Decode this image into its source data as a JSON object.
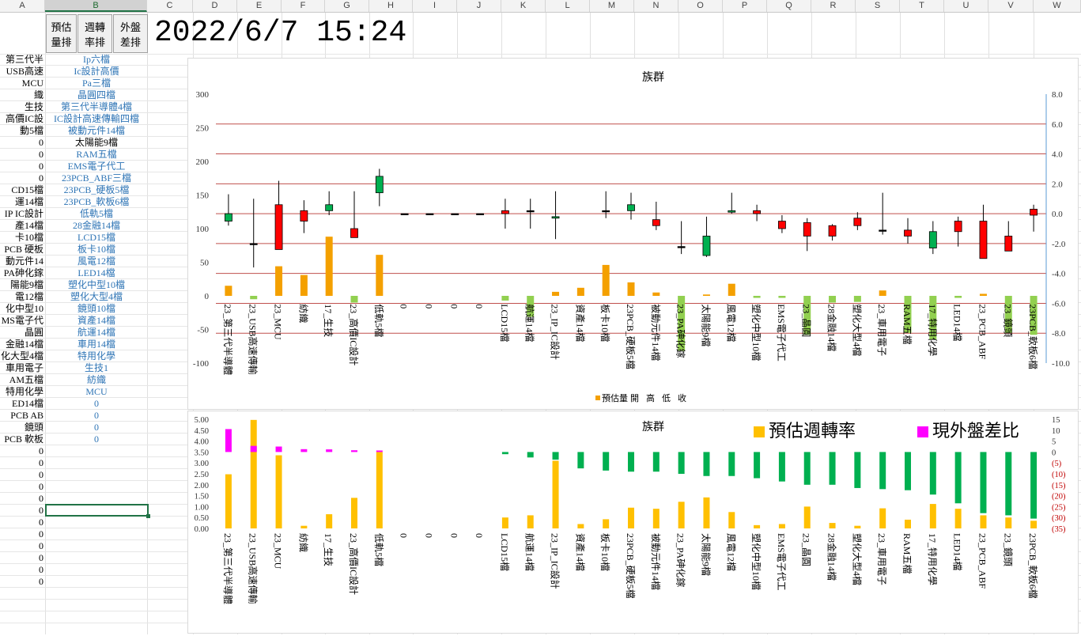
{
  "columns": [
    "A",
    "B",
    "C",
    "D",
    "E",
    "F",
    "G",
    "H",
    "I",
    "J",
    "K",
    "L",
    "M",
    "N",
    "O",
    "P",
    "Q",
    "R",
    "S",
    "T",
    "U",
    "V",
    "W"
  ],
  "selected_column": "B",
  "buttons": [
    {
      "line1": "預估",
      "line2": "量排"
    },
    {
      "line1": "週轉",
      "line2": "率排"
    },
    {
      "line1": "外盤",
      "line2": "差排"
    }
  ],
  "datetime": "2022/6/7 15:24",
  "col_a": [
    "第三代半",
    "USB高速",
    "MCU",
    "織",
    "生技",
    "高價IC設",
    "動5檔",
    "0",
    "0",
    "0",
    "0",
    "CD15檔",
    "運14檔",
    "IP IC設計",
    "產14檔",
    "卡10檔",
    "PCB 硬板",
    "動元件14",
    "PA砷化鎵",
    "陽能9檔",
    "電12檔",
    "化中型10",
    "MS電子代",
    "晶圓",
    "金融14檔",
    "化大型4檔",
    "車用電子",
    "AM五檔",
    "特用化學",
    "ED14檔",
    "PCB AB",
    "鏡頭",
    "PCB 軟板",
    "0",
    "0",
    "0",
    "0",
    "0",
    "0",
    "0",
    "0",
    "0",
    "0",
    "0",
    "0"
  ],
  "col_b": [
    "Ip六檔",
    "Ic設計高價",
    "Pa三檔",
    "晶圓四檔",
    "第三代半導體4檔",
    "IC設計高速傳輸四檔",
    "被動元件14檔",
    "太陽能9檔",
    "RAM五檔",
    "EMS電子代工",
    "23PCB_ABF三檔",
    "23PCB_硬板5檔",
    "23PCB_軟板6檔",
    "低軌5檔",
    "28金融14檔",
    "LCD15檔",
    "板卡10檔",
    "風電12檔",
    "LED14檔",
    "塑化中型10檔",
    "塑化大型4檔",
    "鏡頭10檔",
    "資產14檔",
    "航運14檔",
    "車用14檔",
    "特用化學",
    "生技1",
    "紡織",
    "MCU",
    "0",
    "0",
    "0",
    "0"
  ],
  "col_b_black_rows": [
    7
  ],
  "chart1": {
    "title": "族群",
    "legend": [
      "預估量",
      "開",
      "高",
      "低",
      "收"
    ],
    "left_ticks": [
      "300",
      "250",
      "200",
      "150",
      "100",
      "50",
      "0",
      "-50",
      "-100"
    ],
    "right_ticks": [
      "8.0",
      "6.0",
      "4.0",
      "2.0",
      "0.0",
      "-2.0",
      "-4.0",
      "-6.0",
      "-8.0",
      "-10.0"
    ]
  },
  "chart2": {
    "title": "族群",
    "legend": [
      "預估週轉率",
      "現外盤差比"
    ],
    "left_ticks": [
      "5.00",
      "4.50",
      "4.00",
      "3.50",
      "3.00",
      "2.50",
      "2.00",
      "1.50",
      "1.00",
      "0.50",
      "0.00"
    ],
    "right_ticks": [
      "15",
      "10",
      "5",
      "0",
      "(5)",
      "(10)",
      "(15)",
      "(20)",
      "(25)",
      "(30)",
      "(35)"
    ]
  },
  "colors": {
    "red": "#ff0000",
    "green": "#00b050",
    "orange": "#f4a000",
    "yellow": "#ffc000",
    "magenta": "#ff00ff",
    "light_green": "#92d050",
    "grid_red": "#c0504d"
  },
  "chart_data": [
    {
      "type": "candlestick",
      "title": "族群",
      "ylim": [
        -100,
        300
      ],
      "y2lim": [
        -10,
        8
      ],
      "categories": [
        "23_第三代半導體",
        "23_USB高速傳輸",
        "23_MCU",
        "紡織",
        "17_生技",
        "23_高價IC設計",
        "低軌5檔",
        "0",
        "0",
        "0",
        "0",
        "LCD15檔",
        "航運14檔",
        "23_IP_IC設計",
        "資產14檔",
        "板卡10檔",
        "23PCB_硬板5檔",
        "被動元件14檔",
        "23_PA砷化鎵",
        "太陽能9檔",
        "風電12檔",
        "塑化中型10檔",
        "EMS電子代工",
        "23_晶圓",
        "28金融14檔",
        "塑化大型4檔",
        "23_車用電子",
        "RAM五檔",
        "17_特用化學",
        "LED14檔",
        "23_PCB_ABF",
        "23_鏡頭",
        "23PCB_軟板6檔"
      ],
      "series": [
        {
          "name": "預估量",
          "values": [
            15,
            -5,
            44,
            31,
            88,
            -10,
            61,
            0,
            0,
            0,
            0,
            -7,
            -31,
            6,
            12,
            46,
            20,
            5,
            -82,
            2,
            18,
            -3,
            -3,
            -58,
            -10,
            -9,
            8,
            -55,
            -65,
            -3,
            3,
            -55,
            -58
          ]
        },
        {
          "name": "開",
          "values": [
            0.0,
            -2.0,
            -2.4,
            -0.5,
            0.6,
            -1.6,
            2.5,
            0.0,
            0.0,
            0.0,
            0.0,
            0.0,
            0.2,
            -0.2,
            null,
            0.2,
            0.6,
            -0.8,
            -2.2,
            -1.5,
            0.2,
            0.0,
            -1.0,
            -1.5,
            -1.5,
            -0.8,
            -1.1,
            -1.5,
            -1.2,
            -1.2,
            -3.0,
            -2.5,
            -0.1
          ]
        },
        {
          "name": "高",
          "values": [
            1.3,
            1.0,
            2.2,
            0.9,
            1.5,
            1.5,
            3.0,
            0.0,
            0.0,
            0.0,
            0.0,
            1.0,
            1.0,
            1.5,
            null,
            1.5,
            1.4,
            0.8,
            -0.5,
            -0.2,
            1.4,
            0.6,
            -0.1,
            -0.3,
            -0.7,
            0.1,
            1.4,
            -0.3,
            -0.5,
            -0.2,
            0.6,
            -0.5,
            0.6
          ]
        },
        {
          "name": "低",
          "values": [
            -0.8,
            -3.6,
            -1.3,
            -1.3,
            -0.1,
            -1.4,
            0.5,
            0.0,
            0.0,
            0.0,
            0.0,
            -1.0,
            -1.0,
            -1.7,
            null,
            -0.3,
            -0.4,
            -1.1,
            -2.7,
            -2.9,
            0.0,
            -0.5,
            -1.3,
            -2.5,
            -1.8,
            -1.1,
            -1.4,
            -2.0,
            -2.7,
            -2.2,
            -2.8,
            -2.4,
            -1.2
          ]
        },
        {
          "name": "收",
          "values": [
            -0.5,
            -2.0,
            0.6,
            0.2,
            0.2,
            -1.0,
            1.4,
            0.0,
            0.0,
            0.0,
            0.0,
            0.2,
            0.2,
            -0.3,
            null,
            0.2,
            0.2,
            -0.4,
            -2.2,
            -2.8,
            0.1,
            0.2,
            -0.5,
            -0.6,
            -0.8,
            -0.3,
            -1.1,
            -1.1,
            -2.3,
            -0.5,
            -0.5,
            -1.5,
            0.3
          ]
        }
      ]
    },
    {
      "type": "bar",
      "title": "族群",
      "ylim": [
        0,
        5
      ],
      "y2lim": [
        -35,
        15
      ],
      "categories": [
        "23_第三代半導體",
        "23_USB高速傳輸",
        "23_MCU",
        "紡織",
        "17_生技",
        "23_高價IC設計",
        "低軌5檔",
        "0",
        "0",
        "0",
        "0",
        "LCD15檔",
        "航運14檔",
        "23_IP_IC設計",
        "資產14檔",
        "板卡10檔",
        "23PCB_硬板5檔",
        "被動元件14檔",
        "23_PA砷化鎵",
        "太陽能9檔",
        "風電12檔",
        "塑化中型10檔",
        "EMS電子代工",
        "23_晶圓",
        "28金融14檔",
        "塑化大型4檔",
        "23_車用電子",
        "RAM五檔",
        "17_特用化學",
        "LED14檔",
        "23_PCB_ABF",
        "23_鏡頭",
        "23PCB_軟板6檔"
      ],
      "series": [
        {
          "name": "預估週轉率",
          "values": [
            2.48,
            4.97,
            3.35,
            0.12,
            0.65,
            1.4,
            3.5,
            0,
            0,
            0,
            0,
            0.5,
            0.6,
            3.1,
            0.2,
            0.42,
            0.95,
            0.9,
            1.22,
            1.42,
            0.75,
            0.15,
            0.2,
            1.0,
            0.25,
            0.12,
            0.92,
            0.4,
            1.12,
            0.9,
            0.6,
            0.5,
            0.35
          ]
        },
        {
          "name": "現外盤差比",
          "values": [
            10.5,
            2.8,
            2.5,
            1.3,
            1.2,
            0.8,
            0.7,
            0,
            0,
            0,
            0,
            -1,
            -2.5,
            -3.5,
            -7.5,
            -8.5,
            -9,
            -9,
            -10,
            -11,
            -11,
            -12,
            -13.5,
            -15,
            -15,
            -16.5,
            -17,
            -17.5,
            -19.5,
            -23.5,
            -28,
            -29,
            -30.5
          ]
        }
      ]
    }
  ]
}
